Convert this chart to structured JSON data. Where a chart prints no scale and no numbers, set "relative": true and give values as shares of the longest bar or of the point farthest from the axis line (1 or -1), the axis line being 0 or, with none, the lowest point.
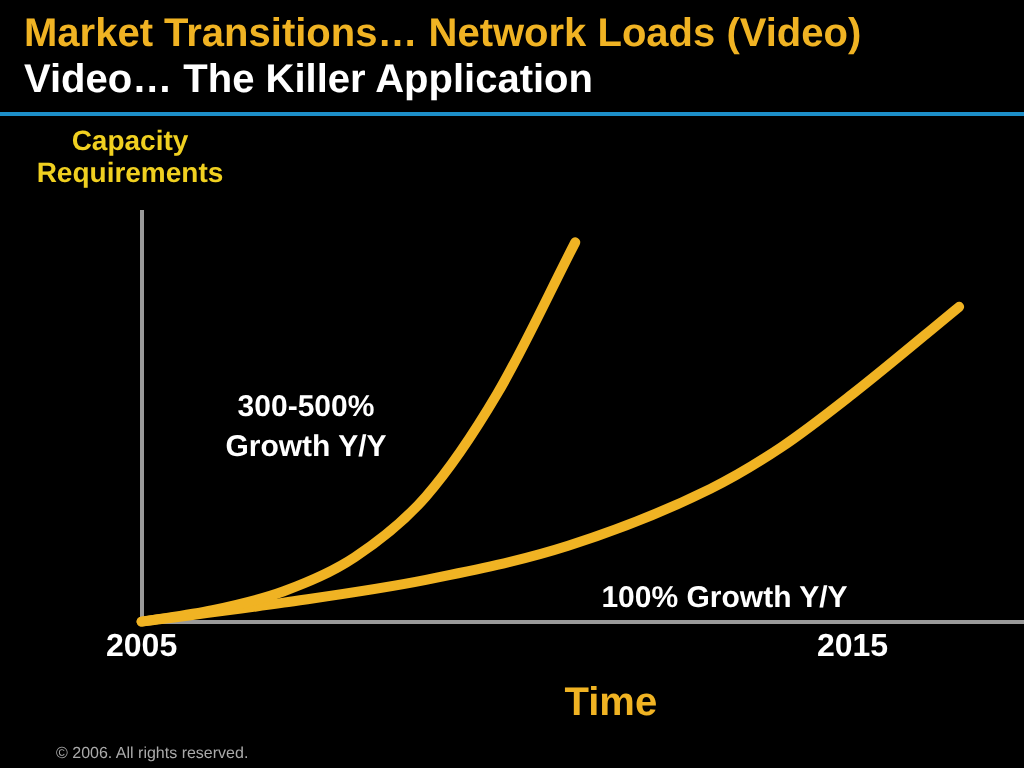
{
  "chart_data": {
    "type": "line",
    "title": "Market Transitions… Network Loads (Video)",
    "subtitle": "Video… The Killer Application",
    "xlabel": "Time",
    "ylabel": "Capacity Requirements",
    "relative": true,
    "xlim": [
      2005,
      2018.2
    ],
    "xticks": [
      2005,
      2015
    ],
    "grid": false,
    "legend": false,
    "marker": "none",
    "annotations": [
      "© 2006. All rights reserved."
    ],
    "series": [
      {
        "name": "300-500% Growth Y/Y",
        "color": "#f0b323",
        "x": [
          2005,
          2006,
          2007,
          2008,
          2009,
          2010,
          2011.1
        ],
        "values": [
          0,
          0.03,
          0.08,
          0.17,
          0.33,
          0.6,
          1
        ]
      },
      {
        "name": "100% Growth Y/Y",
        "color": "#f0b323",
        "x": [
          2005,
          2007,
          2009,
          2011,
          2013,
          2014,
          2015,
          2016.5
        ],
        "values": [
          0,
          0.05,
          0.11,
          0.2,
          0.35,
          0.46,
          0.6,
          0.83
        ]
      }
    ]
  }
}
